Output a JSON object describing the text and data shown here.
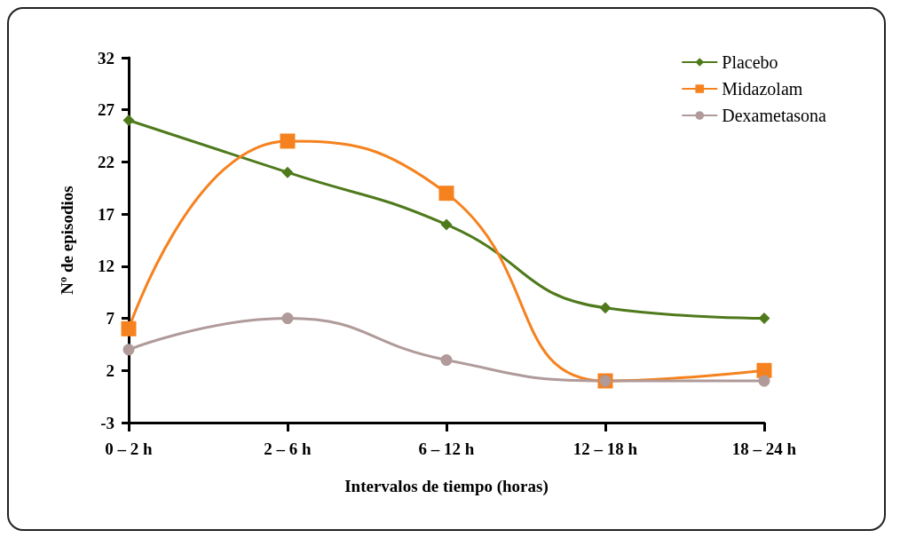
{
  "chart_data": {
    "type": "line",
    "xlabel": "Intervalos de tiempo (horas)",
    "ylabel": "Nº de episodios",
    "categories": [
      "0 – 2 h",
      "2 – 6 h",
      "6 – 12 h",
      "12 – 18 h",
      "18 – 24 h"
    ],
    "series": [
      {
        "name": "Placebo",
        "color": "#4f7a1c",
        "marker": "diamond",
        "values": [
          26,
          21,
          16,
          8,
          7
        ]
      },
      {
        "name": "Midazolam",
        "color": "#f5821f",
        "marker": "square",
        "values": [
          6,
          24,
          19,
          1,
          2
        ]
      },
      {
        "name": "Dexametasona",
        "color": "#b09a9a",
        "marker": "circle",
        "values": [
          4,
          7,
          3,
          1,
          1
        ]
      }
    ],
    "ylim": [
      -3,
      32
    ],
    "yticks": [
      -3,
      2,
      7,
      12,
      17,
      22,
      27,
      32
    ],
    "grid": false,
    "legend": "top right"
  }
}
